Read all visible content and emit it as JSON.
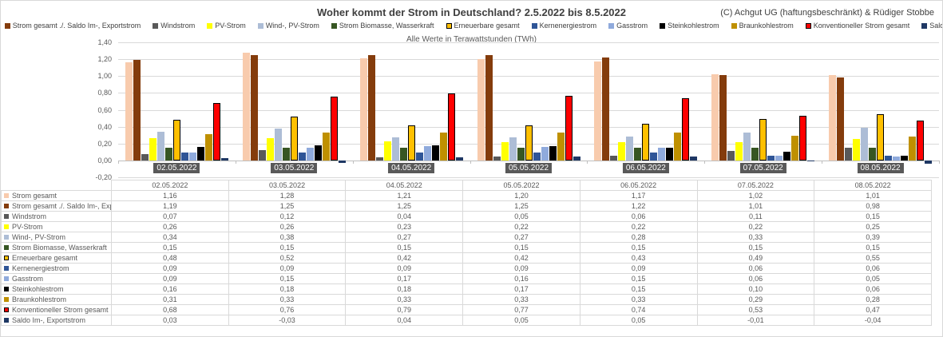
{
  "header": {
    "title": "Woher kommt der Strom in Deutschland? 2.5.2022 bis 8.5.2022",
    "credit": "(C) Achgut UG (haftungsbeschränkt) & Rüdiger Stobbe",
    "subtitle": "Alle Werte in Terawattstunden (TWh)"
  },
  "chart_data": {
    "type": "bar",
    "title": "Woher kommt der Strom in Deutschland? 2.5.2022 bis 8.5.2022",
    "subtitle": "Alle Werte in Terawattstunden (TWh)",
    "unit": "TWh",
    "decimal_format": "comma",
    "legend_position": "top",
    "grid": true,
    "ylim": [
      -0.2,
      1.4
    ],
    "ytick_step": 0.2,
    "ytick_labels": [
      "1,40",
      "1,20",
      "1,00",
      "0,80",
      "0,60",
      "0,40",
      "0,20",
      "0,00",
      "-0,20"
    ],
    "categories": [
      "02.05.2022",
      "03.05.2022",
      "04.05.2022",
      "05.05.2022",
      "06.05.2022",
      "07.05.2022",
      "08.05.2022"
    ],
    "series": [
      {
        "name": "Strom gesamt",
        "color": "#F8CBAD",
        "border": false,
        "values": [
          1.16,
          1.28,
          1.21,
          1.2,
          1.17,
          1.02,
          1.01
        ]
      },
      {
        "name": "Strom gesamt ./. Saldo Im-, Exportstrom",
        "color": "#843C0C",
        "border": false,
        "values": [
          1.19,
          1.25,
          1.25,
          1.25,
          1.22,
          1.01,
          0.98
        ]
      },
      {
        "name": "Windstrom",
        "color": "#595959",
        "border": false,
        "values": [
          0.07,
          0.12,
          0.04,
          0.05,
          0.06,
          0.11,
          0.15
        ]
      },
      {
        "name": "PV-Strom",
        "color": "#FFFF00",
        "border": false,
        "values": [
          0.26,
          0.26,
          0.23,
          0.22,
          0.22,
          0.22,
          0.25
        ]
      },
      {
        "name": "Wind-, PV-Strom",
        "color": "#ADBDD6",
        "border": false,
        "values": [
          0.34,
          0.38,
          0.27,
          0.27,
          0.28,
          0.33,
          0.39
        ]
      },
      {
        "name": "Strom Biomasse, Wasserkraft",
        "color": "#375623",
        "border": false,
        "values": [
          0.15,
          0.15,
          0.15,
          0.15,
          0.15,
          0.15,
          0.15
        ]
      },
      {
        "name": "Erneuerbare gesamt",
        "color": "#FFC000",
        "border": true,
        "values": [
          0.48,
          0.52,
          0.42,
          0.42,
          0.43,
          0.49,
          0.55
        ]
      },
      {
        "name": "Kernenergiestrom",
        "color": "#2F5597",
        "border": false,
        "values": [
          0.09,
          0.09,
          0.09,
          0.09,
          0.09,
          0.06,
          0.06
        ]
      },
      {
        "name": "Gasstrom",
        "color": "#8FAADC",
        "border": false,
        "values": [
          0.09,
          0.15,
          0.17,
          0.16,
          0.15,
          0.06,
          0.05
        ]
      },
      {
        "name": "Steinkohlestrom",
        "color": "#000000",
        "border": false,
        "values": [
          0.16,
          0.18,
          0.18,
          0.17,
          0.15,
          0.1,
          0.06
        ]
      },
      {
        "name": "Braunkohlestrom",
        "color": "#BF9000",
        "border": false,
        "values": [
          0.31,
          0.33,
          0.33,
          0.33,
          0.33,
          0.29,
          0.28
        ]
      },
      {
        "name": "Konventioneller Strom gesamt",
        "color": "#FF0000",
        "border": true,
        "values": [
          0.68,
          0.76,
          0.79,
          0.77,
          0.74,
          0.53,
          0.47
        ]
      },
      {
        "name": "Saldo Im-, Exportstrom",
        "color": "#1F3864",
        "border": false,
        "values": [
          0.03,
          -0.03,
          0.04,
          0.05,
          0.05,
          -0.01,
          -0.04
        ]
      }
    ]
  },
  "style": {
    "grid_color": "#D9D9D9",
    "zero_line_color": "#BFBFBF",
    "axis_label_bg": "#595959",
    "axis_label_text": "#FFFFFF",
    "tick_text_color": "#595959",
    "title_color": "#3F3F3F",
    "table_border": "#D9D9D9"
  }
}
